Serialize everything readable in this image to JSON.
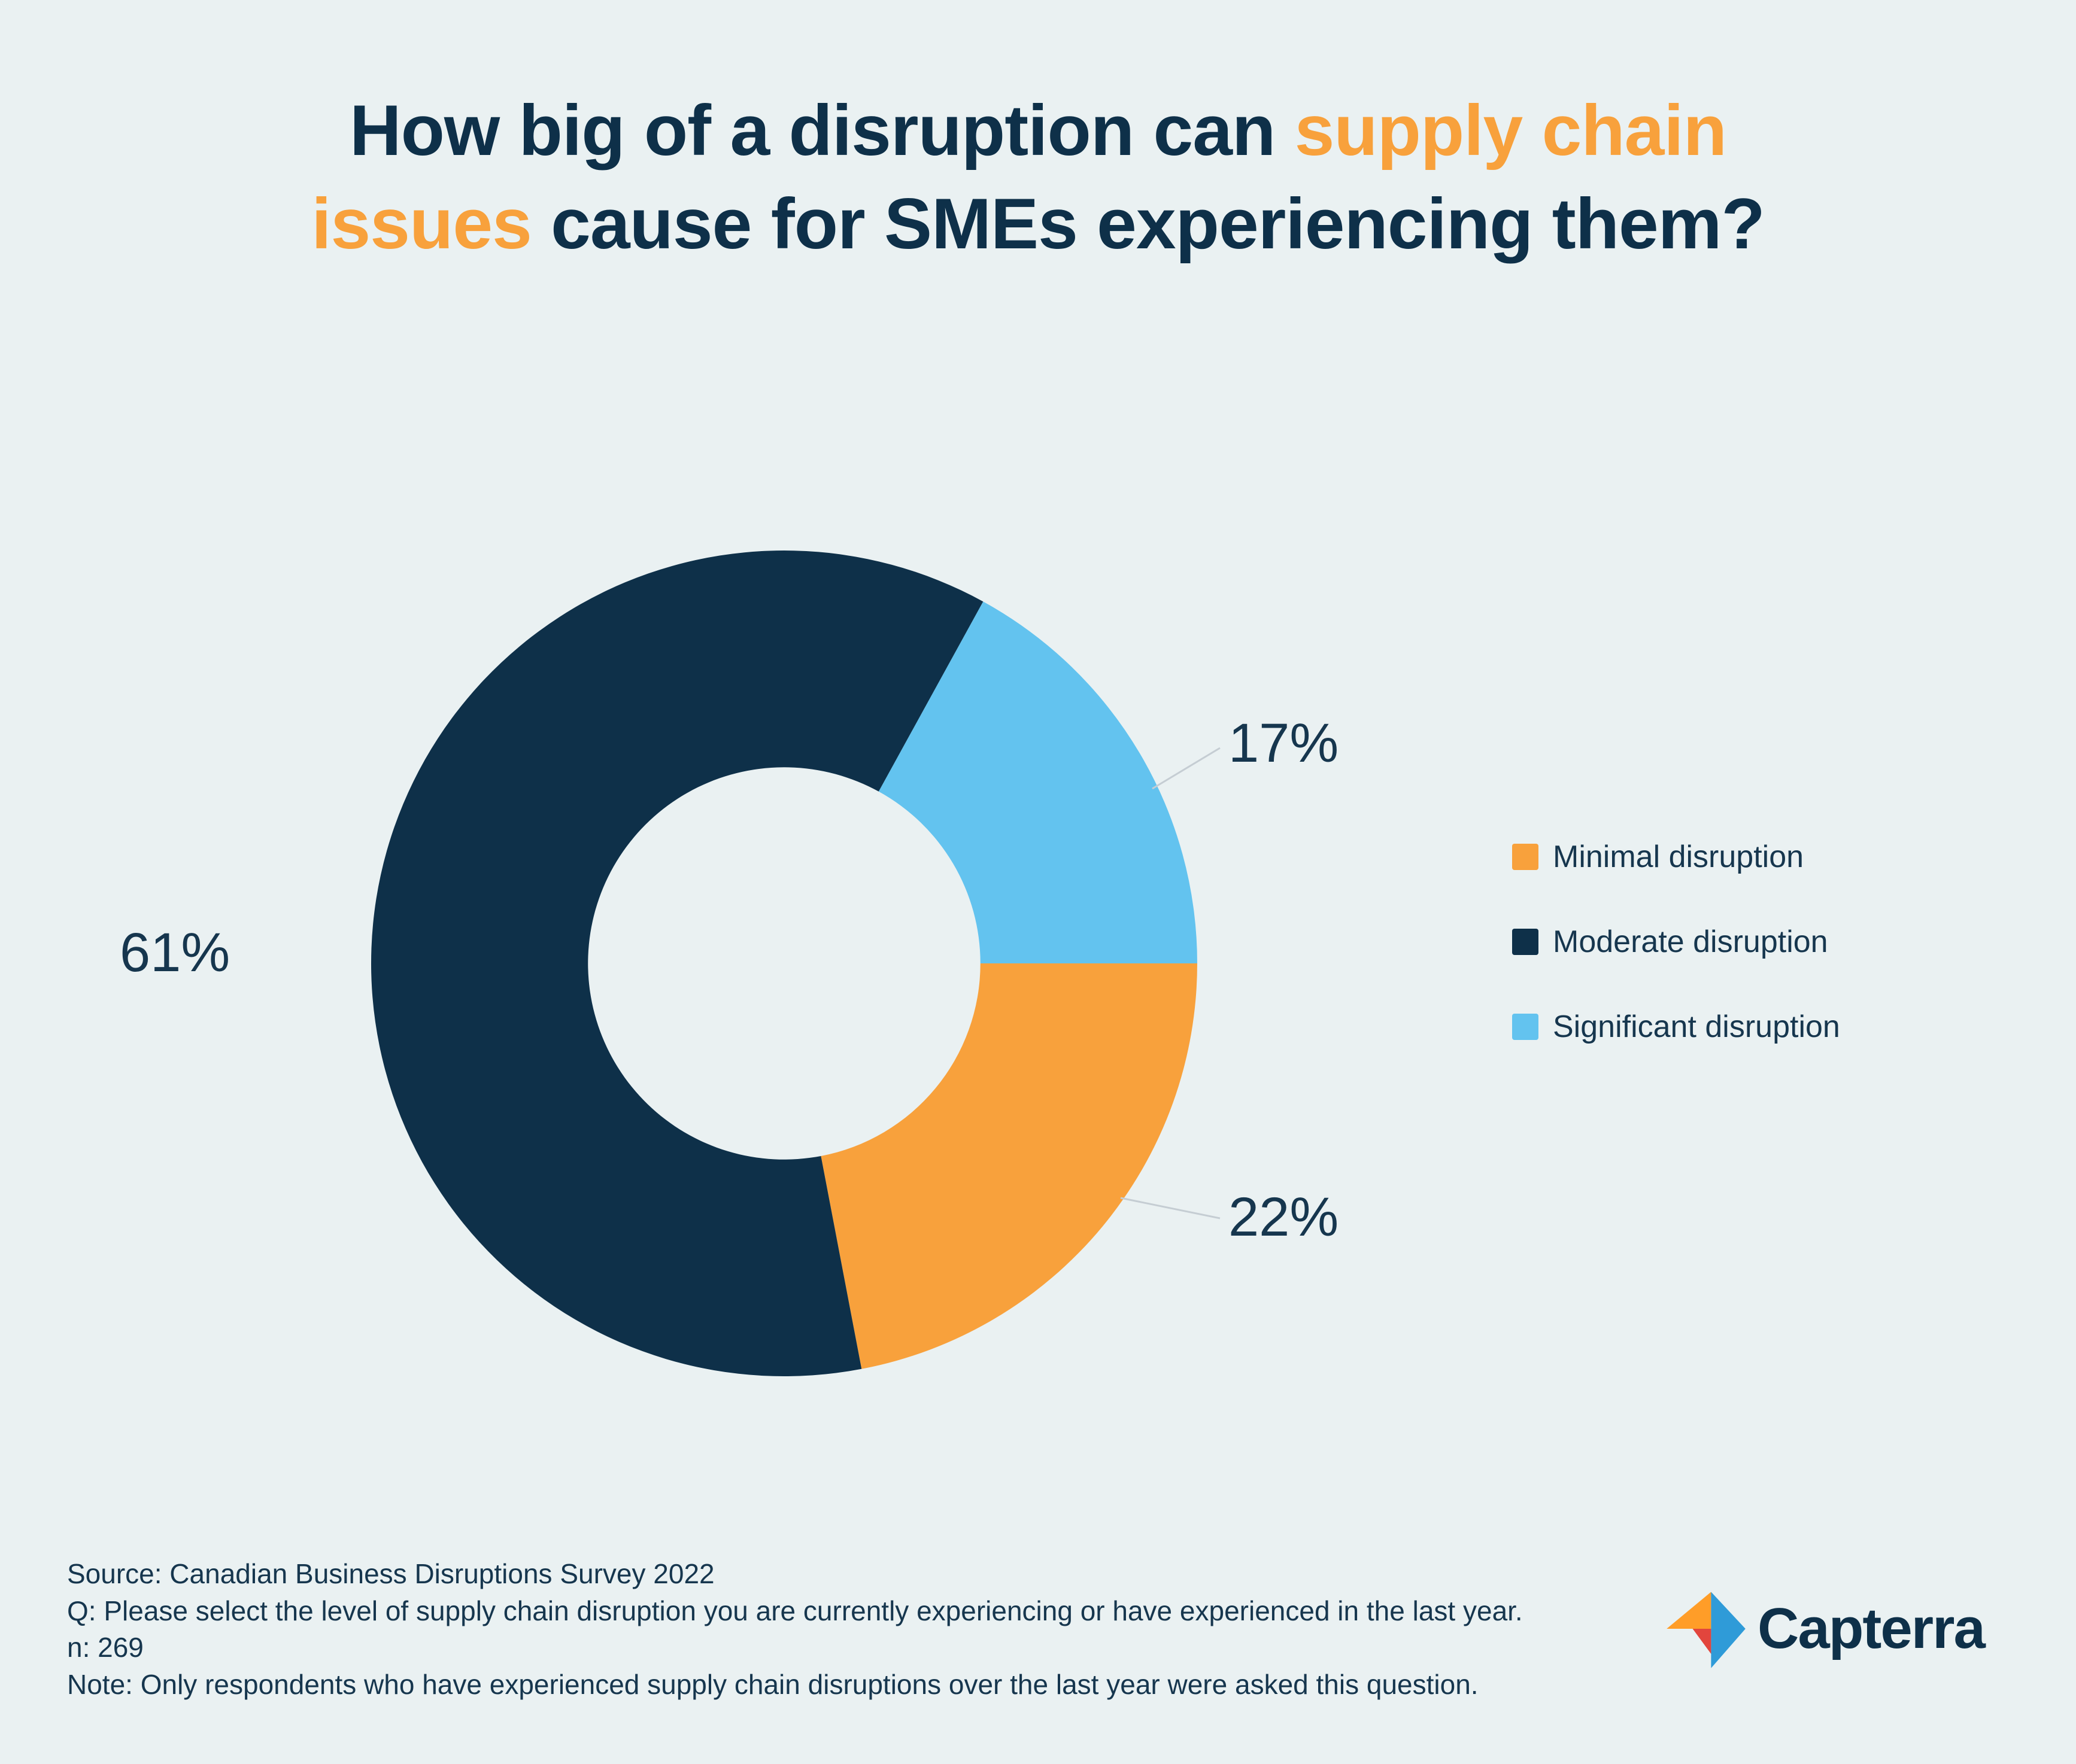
{
  "page": {
    "background": "#EAF1F2"
  },
  "title": {
    "l1a": "How big of a disruption can ",
    "l1b": "supply chain",
    "l2a": "issues",
    "l2b": " cause for SMEs experiencing them?"
  },
  "colors": {
    "background": "#EAF1F2",
    "navy": "#0E3049",
    "orange": "#F8A13C",
    "light_blue": "#63C3EF",
    "text": "#16364E",
    "leader_line": "#C5CDD3"
  },
  "chart_data": {
    "type": "pie",
    "variant": "donut",
    "title": "How big of a disruption can supply chain issues cause for SMEs experiencing them?",
    "series": [
      {
        "name": "Minimal disruption",
        "value": 22,
        "label": "22%",
        "color": "#F8A13C"
      },
      {
        "name": "Moderate disruption",
        "value": 61,
        "label": "61%",
        "color": "#0E3049"
      },
      {
        "name": "Significant disruption",
        "value": 17,
        "label": "17%",
        "color": "#63C3EF"
      }
    ],
    "start_angle_deg": 0,
    "direction": "clockwise",
    "inner_radius_ratio": 0.475,
    "legend_position": "right"
  },
  "legend": [
    {
      "label": "Minimal disruption",
      "color": "#F8A13C"
    },
    {
      "label": "Moderate disruption",
      "color": "#0E3049"
    },
    {
      "label": "Significant disruption",
      "color": "#63C3EF"
    }
  ],
  "footer": {
    "source": "Source: Canadian Business Disruptions Survey 2022",
    "question": "Q: Please select the level of supply chain disruption you are currently experiencing or have experienced in the last year.",
    "n": "n: 269",
    "note": "Note: Only respondents who have experienced supply chain disruptions over the last year were asked this question."
  },
  "logo": {
    "text": "Capterra"
  }
}
